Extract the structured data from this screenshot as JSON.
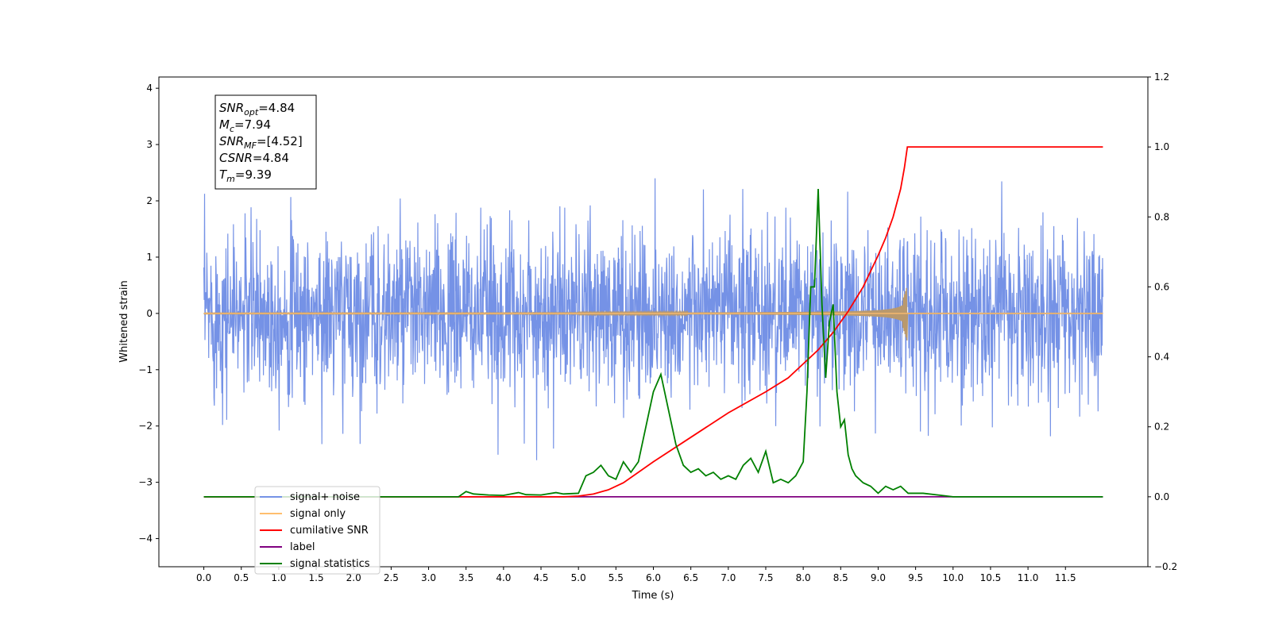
{
  "chart_data": {
    "type": "line",
    "title": "",
    "xlabel": "Time (s)",
    "ylabel": "Whitened strain",
    "ylabel_right": "",
    "xlim": [
      -0.6,
      12.6
    ],
    "ylim": [
      -4.5,
      4.2
    ],
    "ylim_right": [
      -0.2,
      1.2
    ],
    "x_ticks": [
      "0.0",
      "0.5",
      "1.0",
      "1.5",
      "2.0",
      "2.5",
      "3.0",
      "3.5",
      "4.0",
      "4.5",
      "5.0",
      "5.5",
      "6.0",
      "6.5",
      "7.0",
      "7.5",
      "8.0",
      "8.5",
      "9.0",
      "9.5",
      "10.0",
      "10.5",
      "11.0",
      "11.5"
    ],
    "y_ticks": [
      "4",
      "3",
      "2",
      "1",
      "0",
      "−1",
      "−2",
      "−3",
      "−4"
    ],
    "y_ticks_right": [
      "1.2",
      "1.0",
      "0.8",
      "0.6",
      "0.4",
      "0.2",
      "0.0",
      "−0.2"
    ],
    "grid": false,
    "legend_position": "lower-left",
    "annotation": [
      {
        "base": "SNR",
        "sub": "opt",
        "value": "=4.84"
      },
      {
        "base": "M",
        "sub": "c",
        "value": "=7.94"
      },
      {
        "base": "SNR",
        "sub": "MF",
        "value": "=[4.52]"
      },
      {
        "base": "CSNR",
        "sub": "",
        "value": "=4.84"
      },
      {
        "base": "T",
        "sub": "m",
        "value": "=9.39"
      }
    ],
    "series": [
      {
        "name": "signal+ noise",
        "color": "#7592e6",
        "axis": "left",
        "description_x_range": [
          0,
          12
        ],
        "std": 0.75
      },
      {
        "name": "signal only",
        "color": "#ffbe6e",
        "axis": "left",
        "merger_time": 9.39
      },
      {
        "name": "cumilative SNR",
        "color": "#ff0000",
        "axis": "right",
        "x": [
          0,
          4.8,
          5.0,
          5.2,
          5.4,
          5.6,
          5.8,
          6.0,
          6.5,
          7.0,
          7.5,
          7.8,
          8.0,
          8.2,
          8.4,
          8.6,
          8.8,
          9.0,
          9.1,
          9.2,
          9.3,
          9.35,
          9.39,
          12.0
        ],
        "values": [
          0,
          0,
          0.002,
          0.008,
          0.02,
          0.04,
          0.07,
          0.1,
          0.17,
          0.24,
          0.3,
          0.34,
          0.38,
          0.42,
          0.47,
          0.53,
          0.6,
          0.69,
          0.74,
          0.8,
          0.88,
          0.94,
          1.0,
          1.0
        ]
      },
      {
        "name": "label",
        "color": "#800080",
        "axis": "right",
        "x": [
          0,
          12
        ],
        "values": [
          0,
          0
        ]
      },
      {
        "name": "signal statistics",
        "color": "#008000",
        "axis": "right",
        "x": [
          0,
          3.4,
          3.5,
          3.6,
          3.8,
          4.0,
          4.2,
          4.3,
          4.5,
          4.7,
          4.8,
          5.0,
          5.1,
          5.2,
          5.3,
          5.4,
          5.5,
          5.6,
          5.7,
          5.8,
          5.9,
          6.0,
          6.1,
          6.2,
          6.3,
          6.4,
          6.5,
          6.6,
          6.7,
          6.8,
          6.9,
          7.0,
          7.1,
          7.2,
          7.3,
          7.4,
          7.5,
          7.6,
          7.7,
          7.8,
          7.9,
          8.0,
          8.05,
          8.1,
          8.15,
          8.2,
          8.25,
          8.3,
          8.35,
          8.4,
          8.45,
          8.5,
          8.55,
          8.6,
          8.65,
          8.7,
          8.8,
          8.9,
          9.0,
          9.1,
          9.2,
          9.3,
          9.4,
          9.5,
          9.6,
          9.8,
          10.0,
          12.0
        ],
        "values": [
          0,
          0,
          0.015,
          0.008,
          0.005,
          0.004,
          0.012,
          0.006,
          0.005,
          0.012,
          0.008,
          0.01,
          0.06,
          0.07,
          0.09,
          0.06,
          0.05,
          0.1,
          0.07,
          0.1,
          0.2,
          0.3,
          0.35,
          0.25,
          0.15,
          0.09,
          0.07,
          0.08,
          0.06,
          0.07,
          0.05,
          0.06,
          0.05,
          0.09,
          0.11,
          0.07,
          0.13,
          0.04,
          0.05,
          0.04,
          0.06,
          0.1,
          0.3,
          0.6,
          0.6,
          0.88,
          0.55,
          0.34,
          0.5,
          0.55,
          0.3,
          0.2,
          0.22,
          0.12,
          0.08,
          0.06,
          0.04,
          0.03,
          0.01,
          0.03,
          0.02,
          0.03,
          0.01,
          0.01,
          0.01,
          0.005,
          0,
          0
        ]
      }
    ]
  }
}
